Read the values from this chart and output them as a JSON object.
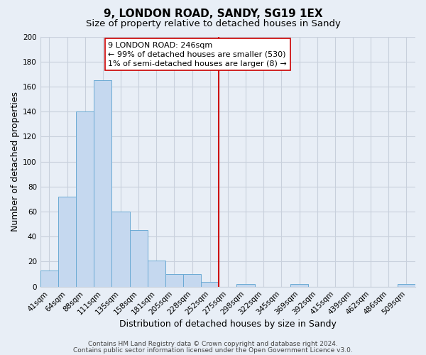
{
  "title": "9, LONDON ROAD, SANDY, SG19 1EX",
  "subtitle": "Size of property relative to detached houses in Sandy",
  "xlabel": "Distribution of detached houses by size in Sandy",
  "ylabel": "Number of detached properties",
  "bar_color": "#c5d8ef",
  "bar_edge_color": "#6aaad4",
  "bin_labels": [
    "41sqm",
    "64sqm",
    "88sqm",
    "111sqm",
    "135sqm",
    "158sqm",
    "181sqm",
    "205sqm",
    "228sqm",
    "252sqm",
    "275sqm",
    "298sqm",
    "322sqm",
    "345sqm",
    "369sqm",
    "392sqm",
    "415sqm",
    "439sqm",
    "462sqm",
    "486sqm",
    "509sqm"
  ],
  "bar_values": [
    13,
    72,
    140,
    165,
    60,
    45,
    21,
    10,
    10,
    4,
    0,
    2,
    0,
    0,
    2,
    0,
    0,
    0,
    0,
    0,
    2
  ],
  "ylim": [
    0,
    200
  ],
  "yticks": [
    0,
    20,
    40,
    60,
    80,
    100,
    120,
    140,
    160,
    180,
    200
  ],
  "vline_bin_index": 9,
  "vline_color": "#cc0000",
  "annotation_line1": "9 LONDON ROAD: 246sqm",
  "annotation_line2": "← 99% of detached houses are smaller (530)",
  "annotation_line3": "1% of semi-detached houses are larger (8) →",
  "annotation_box_color": "#ffffff",
  "annotation_box_edge": "#cc0000",
  "footer_line1": "Contains HM Land Registry data © Crown copyright and database right 2024.",
  "footer_line2": "Contains public sector information licensed under the Open Government Licence v3.0.",
  "background_color": "#e8eef6",
  "grid_color": "#c8d0dc",
  "title_fontsize": 11,
  "subtitle_fontsize": 9.5,
  "xlabel_fontsize": 9,
  "ylabel_fontsize": 9,
  "tick_fontsize": 7.5,
  "annotation_fontsize": 8,
  "footer_fontsize": 6.5
}
